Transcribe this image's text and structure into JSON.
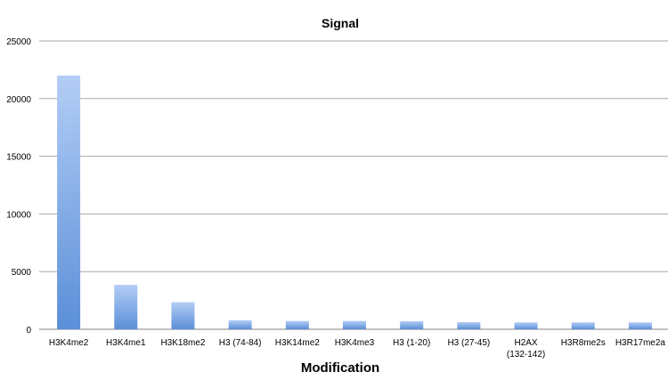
{
  "chart_data": {
    "type": "bar",
    "title": "Signal",
    "xlabel": "Modification",
    "ylabel": "",
    "ylim": [
      0,
      25000
    ],
    "yticks": [
      0,
      5000,
      10000,
      15000,
      20000,
      25000
    ],
    "ytick_labels": [
      "0",
      "5000",
      "10000",
      "15000",
      "20000",
      "25000"
    ],
    "grid": true,
    "legend": "none",
    "categories": [
      "H3K4me2",
      "H3K4me1",
      "H3K18me2",
      "H3 (74-84)",
      "H3K14me2",
      "H3K4me3",
      "H3 (1-20)",
      "H3 (27-45)",
      "H2AX (132-142)",
      "H3R8me2s",
      "H3R17me2a"
    ],
    "category_lines": [
      [
        "H3K4me2"
      ],
      [
        "H3K4me1"
      ],
      [
        "H3K18me2"
      ],
      [
        "H3 (74-84)"
      ],
      [
        "H3K14me2"
      ],
      [
        "H3K4me3"
      ],
      [
        "H3 (1-20)"
      ],
      [
        "H3 (27-45)"
      ],
      [
        "H2AX",
        "(132-142)"
      ],
      [
        "H3R8me2s"
      ],
      [
        "H3R17me2a"
      ]
    ],
    "series": [
      {
        "values": [
          22000,
          3850,
          2350,
          780,
          720,
          720,
          700,
          620,
          600,
          600,
          600
        ]
      }
    ],
    "colors": {
      "bar_top": "#b3cdf5",
      "bar_bottom": "#5b8fd8",
      "grid": "#a8a8a8"
    }
  }
}
